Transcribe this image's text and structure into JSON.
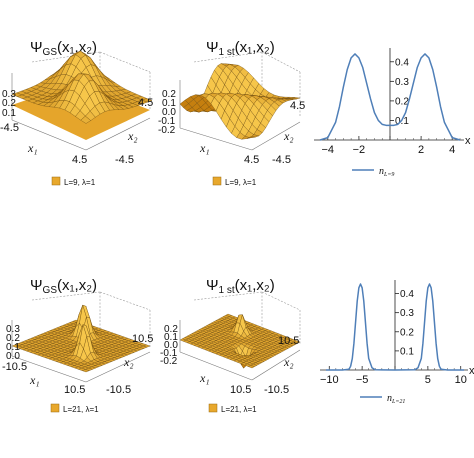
{
  "panels": [
    {
      "id": "top-left",
      "title_main": "Ψ",
      "title_sub": "GS",
      "title_args": "(x₁,x₂)",
      "z_ticks": [
        "0.3",
        "0.2",
        "0.1"
      ],
      "x1_tick_left": "-4.5",
      "x1_tick_right": "4.5",
      "x2_tick_top": "4.5",
      "x2_tick_bottom": "-4.5",
      "x1_label": "x₁",
      "x2_label": "x₂",
      "legend": "L=9, λ=1"
    },
    {
      "id": "top-mid",
      "title_main": "Ψ",
      "title_sub": "1 st",
      "title_args": "(x₁,x₂)",
      "z_ticks": [
        "0.2",
        "0.1",
        "0.0",
        "-0.1",
        "-0.2"
      ],
      "x1_tick_left": "",
      "x1_tick_right": "4.5",
      "x2_tick_top": "4.5",
      "x2_tick_bottom": "-4.5",
      "x1_label": "x₁",
      "x2_label": "x₂",
      "legend": "L=9, λ=1"
    },
    {
      "id": "bottom-left",
      "title_main": "Ψ",
      "title_sub": "GS",
      "title_args": "(x₁,x₂)",
      "z_ticks": [
        "0.3",
        "0.2",
        "0.1",
        "0.0"
      ],
      "x1_tick_left": "-10.5",
      "x1_tick_right": "10.5",
      "x2_tick_top": "10.5",
      "x2_tick_bottom": "-10.5",
      "x1_label": "x₁",
      "x2_label": "x₂",
      "legend": "L=21, λ=1"
    },
    {
      "id": "bottom-mid",
      "title_main": "Ψ",
      "title_sub": "1 st",
      "title_args": "(x₁,x₂)",
      "z_ticks": [
        "0.2",
        "0.1",
        "0.0",
        "-0.1",
        "-0.2"
      ],
      "x1_tick_left": "",
      "x1_tick_right": "10.5",
      "x2_tick_top": "10.5",
      "x2_tick_bottom": "-10.5",
      "x1_label": "x₁",
      "x2_label": "x₂",
      "legend": "L=21, λ=1"
    }
  ],
  "density_legend_top": "n",
  "density_legend_top_sub": "L=9",
  "density_legend_bottom": "n",
  "density_legend_bottom_sub": "L=21",
  "x_axis_symbol": "x",
  "colors": {
    "surface_light": "#f6c64a",
    "surface_dark": "#c57f0f",
    "line": "#4f7fb8"
  },
  "chart_data": [
    {
      "type": "line",
      "title": "",
      "xlabel": "x",
      "ylabel": "",
      "xlim": [
        -4.5,
        4.5
      ],
      "ylim": [
        0,
        0.45
      ],
      "x_ticks": [
        "-4",
        "-2",
        "0",
        "2",
        "4"
      ],
      "y_ticks": [
        "0.1",
        "0.2",
        "0.3",
        "0.4"
      ],
      "series": [
        {
          "name": "n_{L=9}",
          "x": [
            -4.5,
            -4.0,
            -3.5,
            -3.25,
            -3.0,
            -2.75,
            -2.5,
            -2.25,
            -2.0,
            -1.75,
            -1.5,
            -1.25,
            -1.0,
            -0.75,
            -0.5,
            -0.25,
            0.0,
            0.25,
            0.5,
            0.75,
            1.0,
            1.25,
            1.5,
            1.75,
            2.0,
            2.25,
            2.5,
            2.75,
            3.0,
            3.25,
            3.5,
            4.0,
            4.5
          ],
          "values": [
            0.0,
            0.012,
            0.09,
            0.17,
            0.27,
            0.36,
            0.42,
            0.44,
            0.42,
            0.37,
            0.29,
            0.21,
            0.14,
            0.1,
            0.08,
            0.075,
            0.075,
            0.075,
            0.08,
            0.1,
            0.14,
            0.21,
            0.29,
            0.37,
            0.42,
            0.44,
            0.42,
            0.36,
            0.27,
            0.17,
            0.09,
            0.012,
            0.0
          ]
        }
      ]
    },
    {
      "type": "line",
      "title": "",
      "xlabel": "x",
      "ylabel": "",
      "xlim": [
        -10.5,
        10.5
      ],
      "ylim": [
        0,
        0.45
      ],
      "x_ticks": [
        "-10",
        "-5",
        "0",
        "5",
        "10"
      ],
      "y_ticks": [
        "0.1",
        "0.2",
        "0.3",
        "0.4"
      ],
      "series": [
        {
          "name": "n_{L=21}",
          "x": [
            -10.5,
            -8.0,
            -7.0,
            -6.75,
            -6.5,
            -6.25,
            -6.0,
            -5.75,
            -5.5,
            -5.25,
            -5.0,
            -4.75,
            -4.5,
            -4.25,
            -4.0,
            -3.5,
            -3.0,
            0.0,
            3.0,
            3.5,
            4.0,
            4.25,
            4.5,
            4.75,
            5.0,
            5.25,
            5.5,
            5.75,
            6.0,
            6.25,
            6.5,
            6.75,
            7.0,
            8.0,
            10.5
          ],
          "values": [
            0.0,
            0.0,
            0.004,
            0.02,
            0.06,
            0.14,
            0.25,
            0.36,
            0.43,
            0.45,
            0.43,
            0.36,
            0.25,
            0.14,
            0.06,
            0.012,
            0.001,
            0.0,
            0.001,
            0.012,
            0.06,
            0.14,
            0.25,
            0.36,
            0.43,
            0.45,
            0.43,
            0.36,
            0.25,
            0.14,
            0.06,
            0.02,
            0.004,
            0.0,
            0.0
          ]
        }
      ]
    }
  ]
}
